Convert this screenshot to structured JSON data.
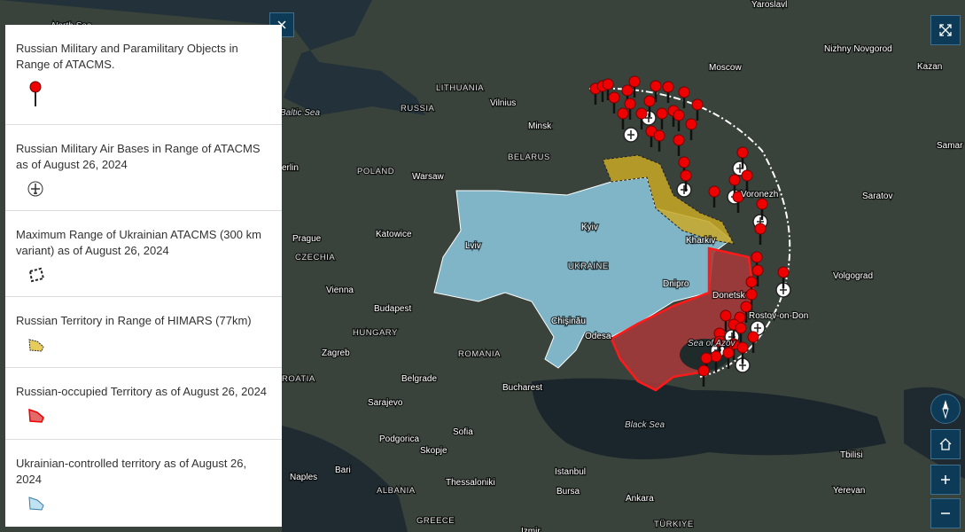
{
  "legend": {
    "items": [
      {
        "label": "Russian Military and Paramilitary Objects in Range of ATACMS."
      },
      {
        "label": "Russian Military Air Bases in Range of ATACMS as of August 26, 2024"
      },
      {
        "label": "Maximum Range of Ukrainian ATACMS (300 km variant) as of August 26, 2024"
      },
      {
        "label": "Russian Territory in Range of HIMARS (77km)"
      },
      {
        "label": "Russian-occupied Territory as of August 26, 2024"
      },
      {
        "label": "Ukrainian-controlled territory as of August 26, 2024"
      }
    ]
  },
  "map": {
    "labels": [
      "North Sea",
      "Yaroslavl",
      "Nizhny Novgorod",
      "Moscow",
      "Kazan",
      "LITHUANIA",
      "Vilnius",
      "RUSSIA",
      "Baltic Sea",
      "Minsk",
      "BELARUS",
      "Samar",
      "erlin",
      "POLAND",
      "Warsaw",
      "Voronezh",
      "Saratov",
      "Kyiv",
      "Prague",
      "Katowice",
      "Lviv",
      "Kharkiv",
      "CZECHIA",
      "UKRAINE",
      "Volgograd",
      "Vienna",
      "Dnipro",
      "Donetsk",
      "Budapest",
      "Rostov-on-Don",
      "HUNGARY",
      "Chișinău",
      "Odesa",
      "ROMANIA",
      "Sea of Azov",
      "Zagreb",
      "Belgrade",
      "Bucharest",
      "Sarajevo",
      "Black Sea",
      "Sofia",
      "Podgorica",
      "Skopje",
      "Istanbul",
      "Bari",
      "Naples",
      "Thessaloniki",
      "Bursa",
      "Ankara",
      "ALBANIA",
      "GREECE",
      "Tbilisi",
      "Yerevan",
      "TÜRKIYE",
      "Izmir",
      "ROATIA"
    ]
  }
}
